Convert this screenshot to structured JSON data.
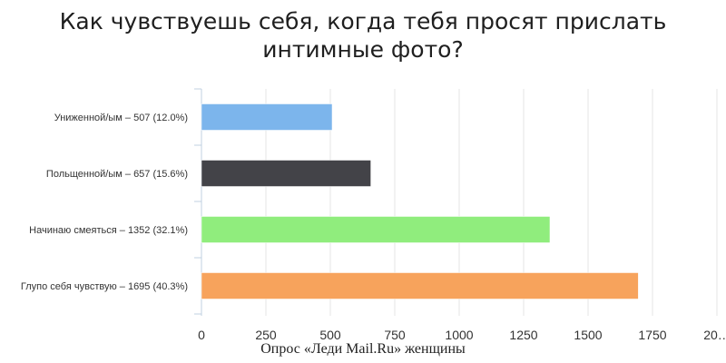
{
  "chart_data": {
    "type": "bar",
    "orientation": "horizontal",
    "title_lines": [
      "Как чувствуешь себя, когда тебя просят прислать",
      "интимные фото?"
    ],
    "categories": [
      "Униженной/ым – 507 (12.0%)",
      "Польщенной/ым – 657 (15.6%)",
      "Начинаю смеяться – 1352 (32.1%)",
      "Глупо себя чувствую – 1695 (40.3%)"
    ],
    "values": [
      507,
      657,
      1352,
      1695
    ],
    "colors": [
      "#7cb5ec",
      "#434348",
      "#90ed7d",
      "#f7a35c"
    ],
    "x_ticks": [
      "0",
      "250",
      "500",
      "750",
      "1000",
      "1250",
      "1500",
      "1750",
      "20…"
    ],
    "xlim": [
      0,
      2000
    ],
    "grid": true,
    "caption": "Опрос «Леди Mail.Ru» женщины"
  }
}
